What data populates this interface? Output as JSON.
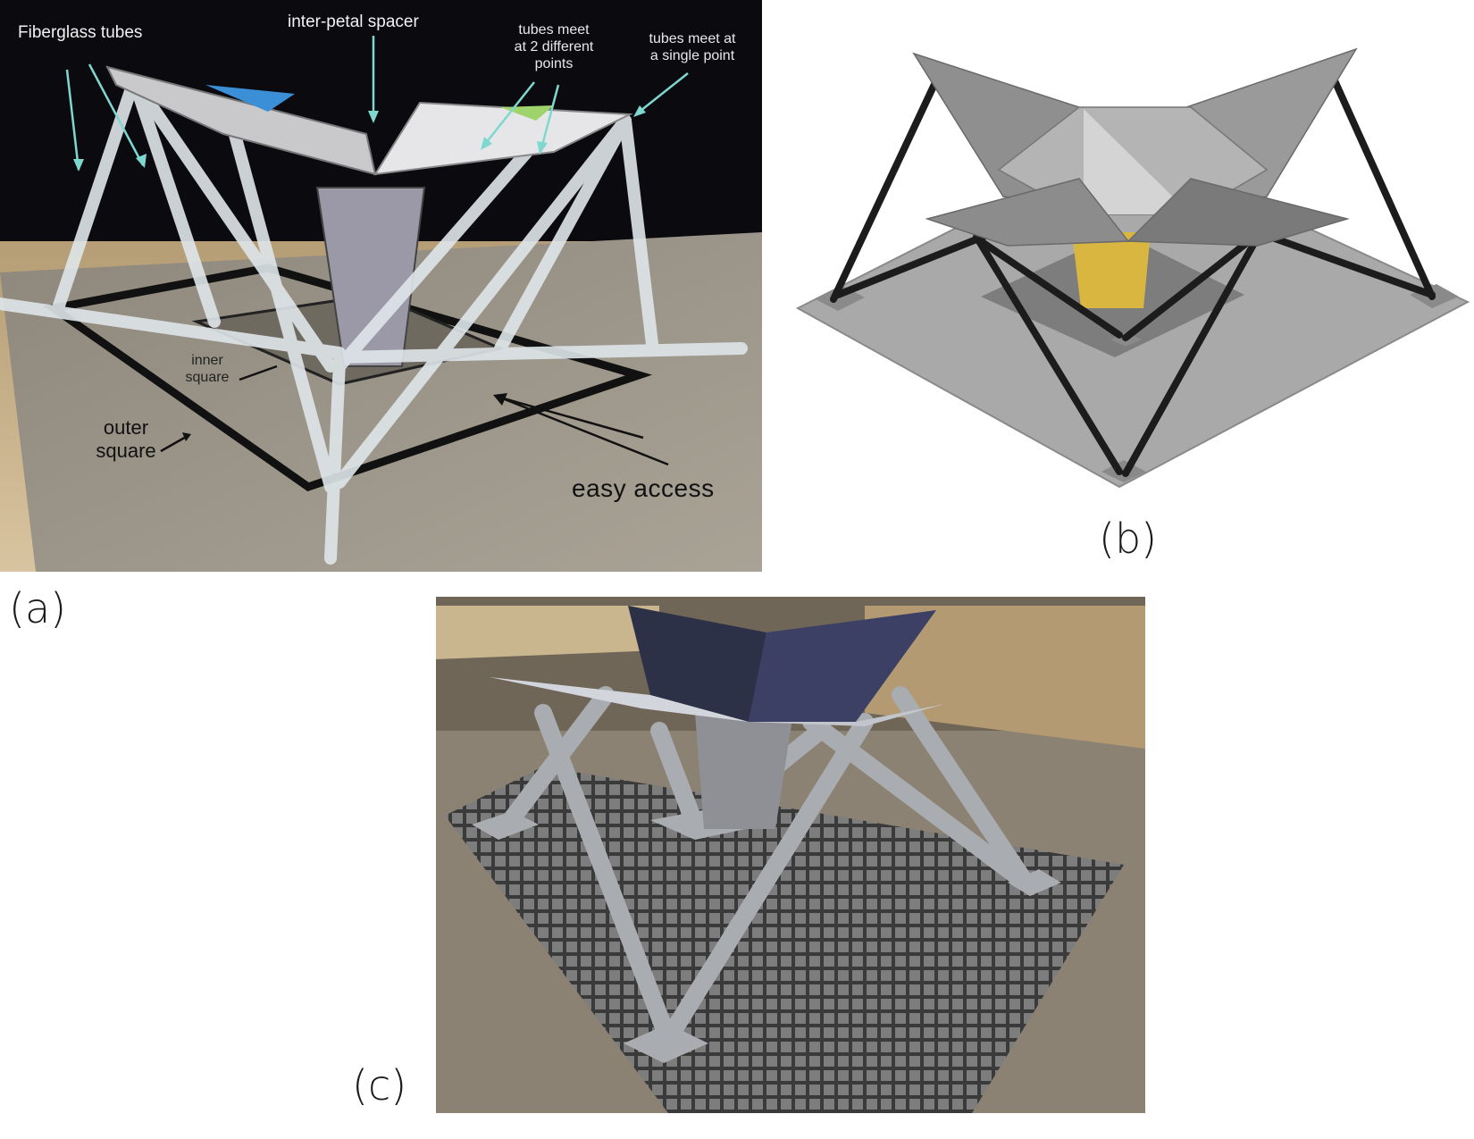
{
  "panel_a": {
    "letter": "(a)",
    "annotations": {
      "fiberglass_tubes": "Fiberglass tubes",
      "inter_petal_spacer": "inter-petal spacer",
      "tubes_meet_two_points": "tubes meet\nat 2 different\npoints",
      "tubes_meet_single_point": "tubes meet at\na single point",
      "inner_square": "inner\nsquare",
      "outer_square": "outer\nsquare",
      "easy_access": "easy access"
    },
    "colors": {
      "background": "#0b0b0f",
      "arrow": "#7fd8d0",
      "tube": "#dfe6ea"
    }
  },
  "panel_b": {
    "letter": "(b)",
    "colors": {
      "base": "#a9a9a9",
      "petal": "#8f8f8f",
      "strut": "#1c1c1c",
      "core": "#d9b640"
    }
  },
  "panel_c": {
    "letter": "(c)",
    "colors": {
      "floor": "#8c8274",
      "grating": "#5a5a5a",
      "steel": "#a9acb0"
    }
  }
}
